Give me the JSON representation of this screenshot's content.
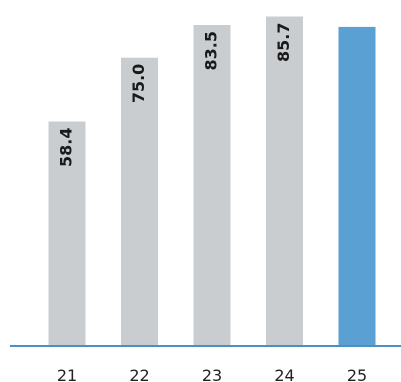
{
  "chart_data": {
    "type": "bar",
    "categories": [
      "21",
      "22",
      "23",
      "24",
      "25"
    ],
    "values": [
      58.4,
      75.0,
      83.5,
      85.7,
      83.0
    ],
    "value_labels": [
      "58.4",
      "75.0",
      "83.5",
      "85.7",
      ""
    ],
    "ylim": [
      0,
      90
    ],
    "grid": false,
    "legend": "none",
    "colors": {
      "default_bar": "#c9cdd0",
      "highlight_bar": "#5aa0d2",
      "axis": "#4a90c2",
      "text": "#1a1a1a"
    },
    "highlight_index": 4
  }
}
